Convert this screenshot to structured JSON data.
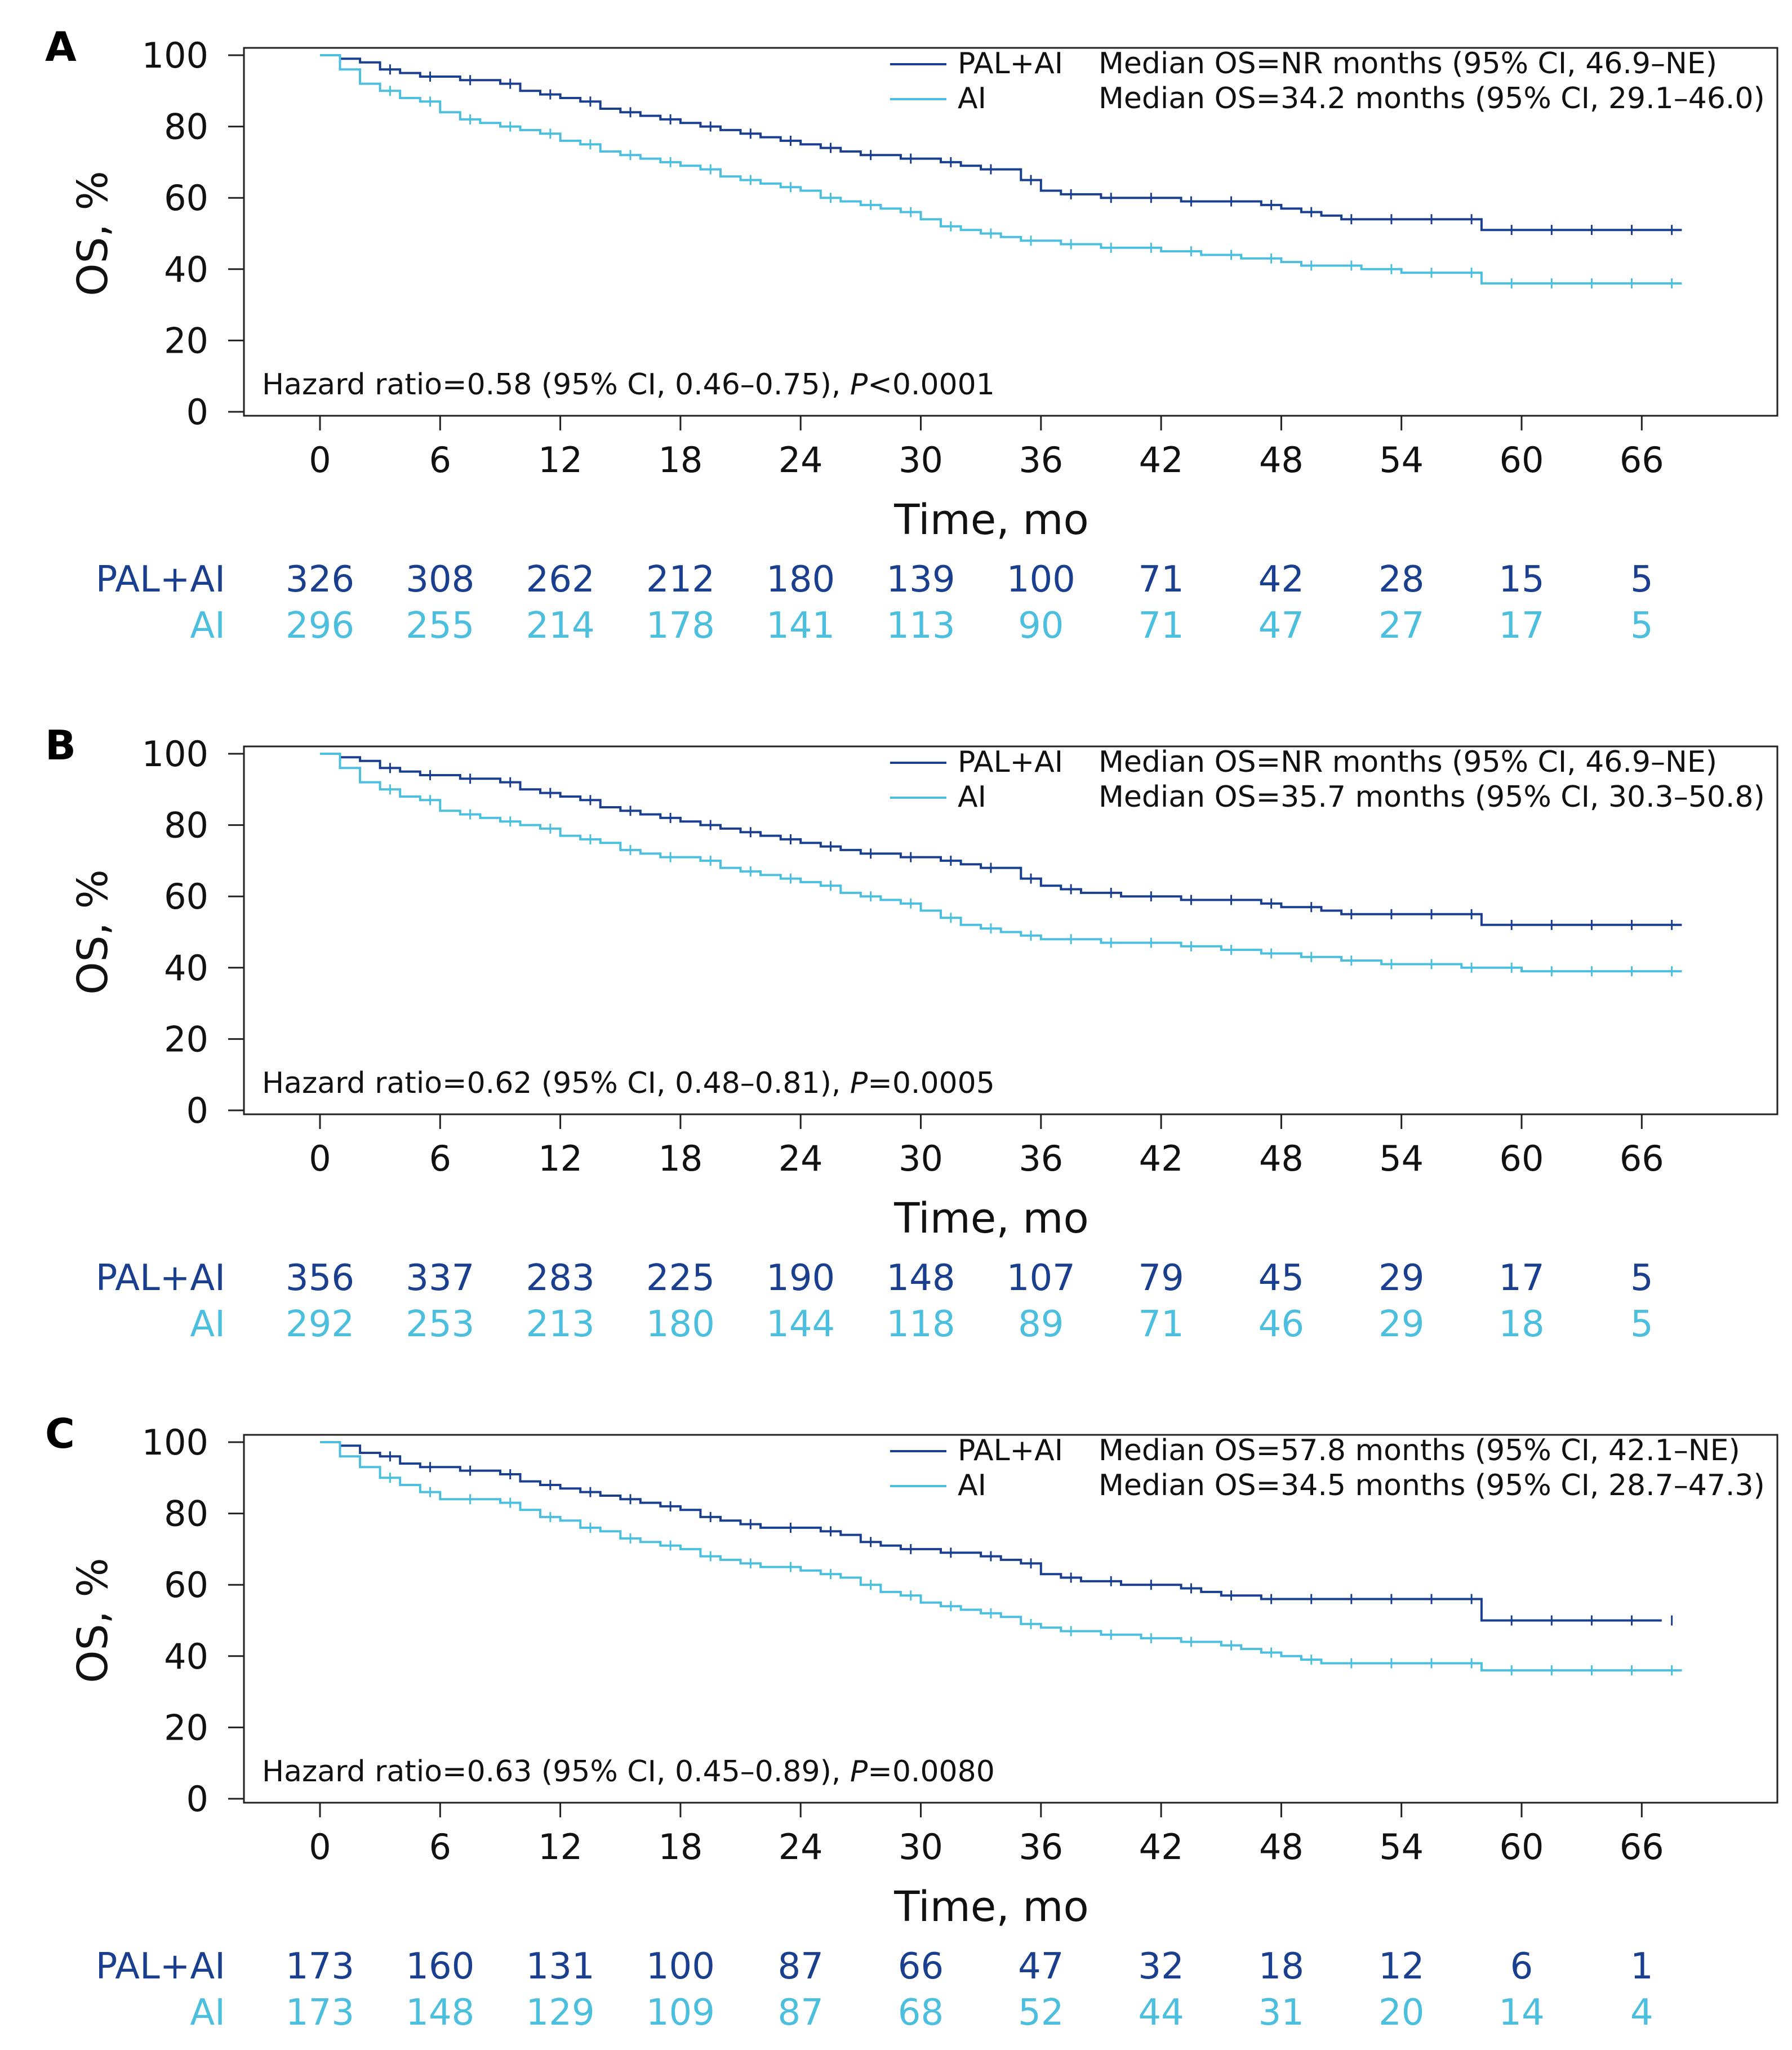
{
  "colors": {
    "pal": "#1b3f8f",
    "ai": "#4cbfdf"
  },
  "x_ticks": [
    "0",
    "6",
    "12",
    "18",
    "24",
    "30",
    "36",
    "42",
    "48",
    "54",
    "60",
    "66"
  ],
  "y_ticks": [
    "0",
    "20",
    "40",
    "60",
    "80",
    "100"
  ],
  "chart_data": [
    {
      "type": "line",
      "panel": "A",
      "xlabel": "Time, mo",
      "ylabel": "OS, %",
      "xlim": [
        -4,
        72
      ],
      "ylim": [
        0,
        100
      ],
      "legend_position": "top-right",
      "series": [
        {
          "name": "PAL+AI",
          "median": "Median OS=NR months (95% CI, 46.9–NE)",
          "x": [
            0,
            1,
            2,
            3,
            4,
            5,
            6,
            7,
            8,
            9,
            10,
            11,
            12,
            13,
            14,
            15,
            16,
            17,
            18,
            19,
            20,
            21,
            22,
            23,
            24,
            25,
            26,
            27,
            28,
            29,
            30,
            31,
            32,
            33,
            34,
            35,
            36,
            37,
            38,
            39,
            40,
            41,
            42,
            43,
            44,
            45,
            46,
            47,
            48,
            49,
            50,
            51,
            52,
            53,
            54,
            55,
            56,
            57,
            58,
            59,
            60,
            61,
            62,
            63,
            64,
            65,
            66,
            67,
            68
          ],
          "y": [
            100,
            99,
            98,
            96,
            95,
            94,
            94,
            93,
            93,
            92,
            90,
            89,
            88,
            87,
            85,
            84,
            83,
            82,
            81,
            80,
            79,
            78,
            77,
            76,
            75,
            74,
            73,
            72,
            72,
            71,
            71,
            70,
            69,
            68,
            68,
            65,
            62,
            61,
            61,
            60,
            60,
            60,
            60,
            59,
            59,
            59,
            59,
            58,
            57,
            56,
            55,
            54,
            54,
            54,
            54,
            54,
            54,
            54,
            51,
            51,
            51,
            51,
            51,
            51,
            51,
            51,
            51,
            51,
            51
          ],
          "at_risk": [
            "326",
            "308",
            "262",
            "212",
            "180",
            "139",
            "100",
            "71",
            "42",
            "28",
            "15",
            "5"
          ]
        },
        {
          "name": "AI",
          "median": "Median OS=34.2 months (95% CI, 29.1–46.0)",
          "x": [
            0,
            1,
            2,
            3,
            4,
            5,
            6,
            7,
            8,
            9,
            10,
            11,
            12,
            13,
            14,
            15,
            16,
            17,
            18,
            19,
            20,
            21,
            22,
            23,
            24,
            25,
            26,
            27,
            28,
            29,
            30,
            31,
            32,
            33,
            34,
            35,
            36,
            37,
            38,
            39,
            40,
            41,
            42,
            43,
            44,
            45,
            46,
            47,
            48,
            49,
            50,
            51,
            52,
            53,
            54,
            55,
            56,
            57,
            58,
            59,
            60,
            61,
            62,
            63,
            64,
            65,
            66,
            67,
            68
          ],
          "y": [
            100,
            96,
            92,
            90,
            88,
            87,
            84,
            82,
            81,
            80,
            79,
            78,
            76,
            75,
            73,
            72,
            71,
            70,
            69,
            68,
            66,
            65,
            64,
            63,
            62,
            60,
            59,
            58,
            57,
            56,
            54,
            52,
            51,
            50,
            49,
            48,
            48,
            47,
            47,
            46,
            46,
            46,
            45,
            45,
            44,
            44,
            43,
            43,
            42,
            41,
            41,
            41,
            40,
            40,
            39,
            39,
            39,
            39,
            36,
            36,
            36,
            36,
            36,
            36,
            36,
            36,
            36,
            36,
            36
          ],
          "at_risk": [
            "296",
            "255",
            "214",
            "178",
            "141",
            "113",
            "90",
            "71",
            "47",
            "27",
            "17",
            "5"
          ]
        }
      ],
      "annotation_prefix": "Hazard ratio=0.58 (95% CI, 0.46–0.75), ",
      "p_label": "P",
      "p_value": "<0.0001"
    },
    {
      "type": "line",
      "panel": "B",
      "xlabel": "Time, mo",
      "ylabel": "OS, %",
      "xlim": [
        -4,
        72
      ],
      "ylim": [
        0,
        100
      ],
      "legend_position": "top-right",
      "series": [
        {
          "name": "PAL+AI",
          "median": "Median OS=NR months (95% CI, 46.9–NE)",
          "x": [
            0,
            1,
            2,
            3,
            4,
            5,
            6,
            7,
            8,
            9,
            10,
            11,
            12,
            13,
            14,
            15,
            16,
            17,
            18,
            19,
            20,
            21,
            22,
            23,
            24,
            25,
            26,
            27,
            28,
            29,
            30,
            31,
            32,
            33,
            34,
            35,
            36,
            37,
            38,
            39,
            40,
            41,
            42,
            43,
            44,
            45,
            46,
            47,
            48,
            49,
            50,
            51,
            52,
            53,
            54,
            55,
            56,
            57,
            58,
            59,
            60,
            61,
            62,
            63,
            64,
            65,
            66,
            67,
            68
          ],
          "y": [
            100,
            99,
            98,
            96,
            95,
            94,
            94,
            93,
            93,
            92,
            90,
            89,
            88,
            87,
            85,
            84,
            83,
            82,
            81,
            80,
            79,
            78,
            77,
            76,
            75,
            74,
            73,
            72,
            72,
            71,
            71,
            70,
            69,
            68,
            68,
            65,
            63,
            62,
            61,
            61,
            60,
            60,
            60,
            59,
            59,
            59,
            59,
            58,
            57,
            57,
            56,
            55,
            55,
            55,
            55,
            55,
            55,
            55,
            52,
            52,
            52,
            52,
            52,
            52,
            52,
            52,
            52,
            52,
            52
          ],
          "at_risk": [
            "356",
            "337",
            "283",
            "225",
            "190",
            "148",
            "107",
            "79",
            "45",
            "29",
            "17",
            "5"
          ]
        },
        {
          "name": "AI",
          "median": "Median OS=35.7 months (95% CI, 30.3–50.8)",
          "x": [
            0,
            1,
            2,
            3,
            4,
            5,
            6,
            7,
            8,
            9,
            10,
            11,
            12,
            13,
            14,
            15,
            16,
            17,
            18,
            19,
            20,
            21,
            22,
            23,
            24,
            25,
            26,
            27,
            28,
            29,
            30,
            31,
            32,
            33,
            34,
            35,
            36,
            37,
            38,
            39,
            40,
            41,
            42,
            43,
            44,
            45,
            46,
            47,
            48,
            49,
            50,
            51,
            52,
            53,
            54,
            55,
            56,
            57,
            58,
            59,
            60,
            61,
            62,
            63,
            64,
            65,
            66,
            67,
            68
          ],
          "y": [
            100,
            96,
            92,
            90,
            88,
            87,
            84,
            83,
            82,
            81,
            80,
            79,
            77,
            76,
            75,
            73,
            72,
            71,
            71,
            70,
            68,
            67,
            66,
            65,
            64,
            63,
            61,
            60,
            59,
            58,
            56,
            54,
            52,
            51,
            50,
            49,
            48,
            48,
            48,
            47,
            47,
            47,
            47,
            46,
            46,
            45,
            45,
            44,
            44,
            43,
            43,
            42,
            42,
            41,
            41,
            41,
            41,
            40,
            40,
            40,
            39,
            39,
            39,
            39,
            39,
            39,
            39,
            39,
            39
          ],
          "at_risk": [
            "292",
            "253",
            "213",
            "180",
            "144",
            "118",
            "89",
            "71",
            "46",
            "29",
            "18",
            "5"
          ]
        }
      ],
      "annotation_prefix": "Hazard ratio=0.62 (95% CI, 0.48–0.81), ",
      "p_label": "P",
      "p_value": "=0.0005"
    },
    {
      "type": "line",
      "panel": "C",
      "xlabel": "Time, mo",
      "ylabel": "OS, %",
      "xlim": [
        -4,
        72
      ],
      "ylim": [
        0,
        100
      ],
      "legend_position": "top-right",
      "series": [
        {
          "name": "PAL+AI",
          "median": "Median OS=57.8 months (95% CI, 42.1–NE)",
          "x": [
            0,
            1,
            2,
            3,
            4,
            5,
            6,
            7,
            8,
            9,
            10,
            11,
            12,
            13,
            14,
            15,
            16,
            17,
            18,
            19,
            20,
            21,
            22,
            23,
            24,
            25,
            26,
            27,
            28,
            29,
            30,
            31,
            32,
            33,
            34,
            35,
            36,
            37,
            38,
            39,
            40,
            41,
            42,
            43,
            44,
            45,
            46,
            47,
            48,
            49,
            50,
            51,
            52,
            53,
            54,
            55,
            56,
            57,
            58,
            59,
            60,
            61,
            62,
            63,
            64,
            65,
            66,
            67
          ],
          "y": [
            100,
            99,
            97,
            96,
            94,
            93,
            93,
            92,
            92,
            91,
            89,
            88,
            87,
            86,
            85,
            84,
            83,
            82,
            81,
            79,
            78,
            77,
            76,
            76,
            76,
            75,
            74,
            72,
            71,
            70,
            70,
            69,
            69,
            68,
            67,
            66,
            63,
            62,
            61,
            61,
            60,
            60,
            60,
            59,
            58,
            57,
            57,
            56,
            56,
            56,
            56,
            56,
            56,
            56,
            56,
            56,
            56,
            56,
            50,
            50,
            50,
            50,
            50,
            50,
            50,
            50,
            50,
            50
          ],
          "at_risk": [
            "173",
            "160",
            "131",
            "100",
            "87",
            "66",
            "47",
            "32",
            "18",
            "12",
            "6",
            "1"
          ]
        },
        {
          "name": "AI",
          "median": "Median OS=34.5 months (95% CI, 28.7–47.3)",
          "x": [
            0,
            1,
            2,
            3,
            4,
            5,
            6,
            7,
            8,
            9,
            10,
            11,
            12,
            13,
            14,
            15,
            16,
            17,
            18,
            19,
            20,
            21,
            22,
            23,
            24,
            25,
            26,
            27,
            28,
            29,
            30,
            31,
            32,
            33,
            34,
            35,
            36,
            37,
            38,
            39,
            40,
            41,
            42,
            43,
            44,
            45,
            46,
            47,
            48,
            49,
            50,
            51,
            52,
            53,
            54,
            55,
            56,
            57,
            58,
            59,
            60,
            61,
            62,
            63,
            64,
            65,
            66,
            67,
            68
          ],
          "y": [
            100,
            96,
            93,
            90,
            88,
            86,
            84,
            84,
            84,
            83,
            81,
            79,
            78,
            76,
            75,
            73,
            72,
            71,
            70,
            68,
            67,
            66,
            65,
            65,
            64,
            63,
            62,
            60,
            58,
            57,
            55,
            54,
            53,
            52,
            51,
            49,
            48,
            47,
            47,
            46,
            46,
            45,
            45,
            44,
            44,
            43,
            42,
            41,
            40,
            39,
            38,
            38,
            38,
            38,
            38,
            38,
            38,
            38,
            36,
            36,
            36,
            36,
            36,
            36,
            36,
            36,
            36,
            36,
            36
          ],
          "at_risk": [
            "173",
            "148",
            "129",
            "109",
            "87",
            "68",
            "52",
            "44",
            "31",
            "20",
            "14",
            "4"
          ]
        }
      ],
      "annotation_prefix": "Hazard ratio=0.63 (95% CI, 0.45–0.89), ",
      "p_label": "P",
      "p_value": "=0.0080"
    }
  ]
}
